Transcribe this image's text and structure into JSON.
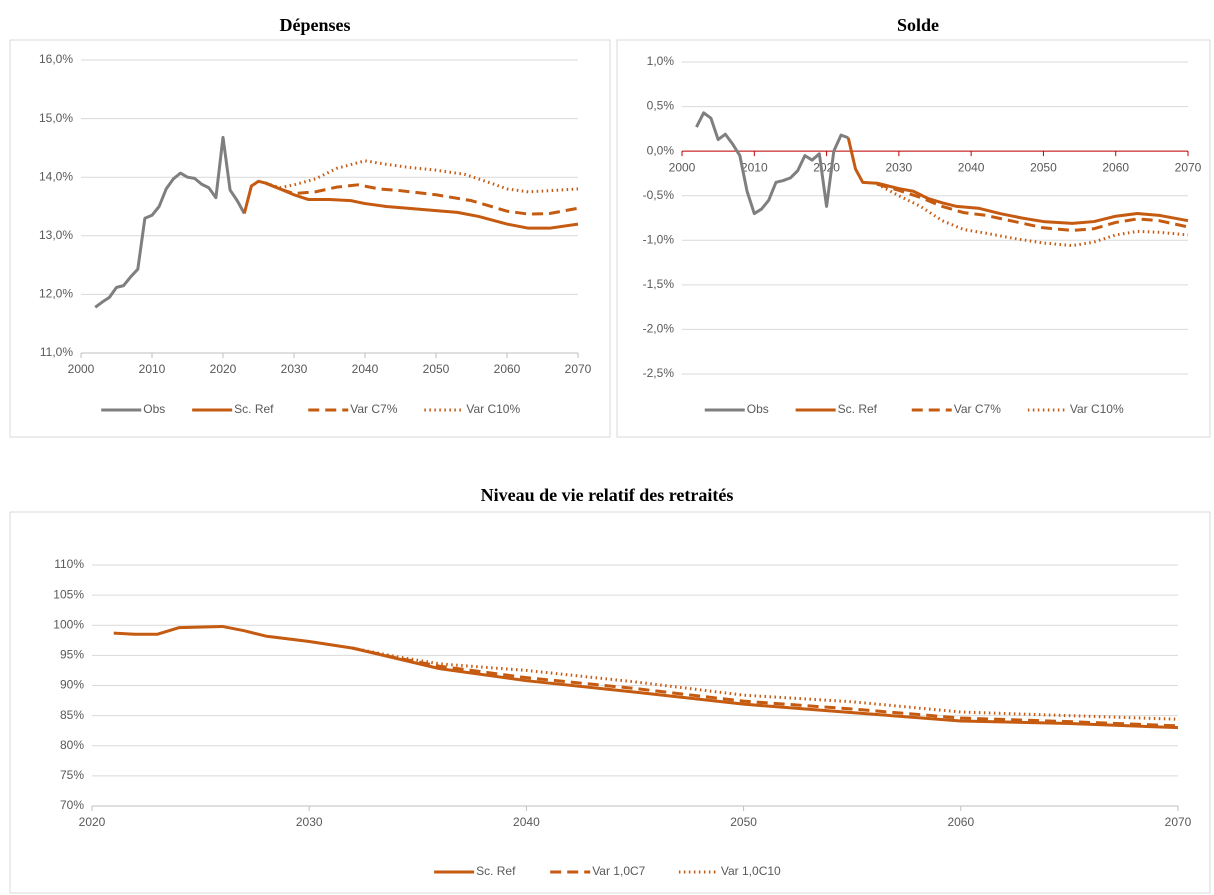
{
  "chart_data": [
    {
      "type": "line",
      "title": "Dépenses",
      "xlim": [
        2000,
        2070
      ],
      "xticks": [
        2000,
        2010,
        2020,
        2030,
        2040,
        2050,
        2060,
        2070
      ],
      "ylim": [
        11,
        16
      ],
      "yticks": [
        {
          "value": 11,
          "label": "11,0%"
        },
        {
          "value": 12,
          "label": "12,0%"
        },
        {
          "value": 13,
          "label": "13,0%"
        },
        {
          "value": 14,
          "label": "14,0%"
        },
        {
          "value": 15,
          "label": "15,0%"
        },
        {
          "value": 16,
          "label": "16,0%"
        }
      ],
      "grid": true,
      "legend": "bottom",
      "axis_color": "#bfbfbf",
      "series": [
        {
          "name": "Obs",
          "color": "#7f7f7f",
          "dash": "solid",
          "x": [
            2002,
            2003,
            2004,
            2005,
            2006,
            2007,
            2008,
            2009,
            2010,
            2011,
            2012,
            2013,
            2014,
            2015,
            2016,
            2017,
            2018,
            2019,
            2020,
            2021,
            2022,
            2023
          ],
          "values": [
            11.78,
            11.87,
            11.95,
            12.12,
            12.15,
            12.3,
            12.43,
            13.3,
            13.35,
            13.5,
            13.8,
            13.97,
            14.07,
            14.0,
            13.98,
            13.88,
            13.82,
            13.65,
            14.68,
            13.78,
            13.6,
            13.38
          ]
        },
        {
          "name": "Sc. Ref",
          "color": "#c55a11",
          "dash": "solid",
          "x": [
            2023,
            2024,
            2025,
            2026,
            2028,
            2030,
            2032,
            2035,
            2038,
            2040,
            2043,
            2046,
            2050,
            2053,
            2056,
            2060,
            2063,
            2066,
            2070
          ],
          "values": [
            13.38,
            13.85,
            13.93,
            13.9,
            13.8,
            13.7,
            13.62,
            13.62,
            13.6,
            13.55,
            13.5,
            13.47,
            13.43,
            13.4,
            13.33,
            13.2,
            13.13,
            13.13,
            13.2
          ]
        },
        {
          "name": "Var C7%",
          "color": "#c55a11",
          "dash": "dashed",
          "x": [
            2026,
            2028,
            2030,
            2033,
            2036,
            2039,
            2042,
            2045,
            2050,
            2055,
            2060,
            2063,
            2066,
            2070
          ],
          "values": [
            13.9,
            13.8,
            13.72,
            13.75,
            13.83,
            13.87,
            13.8,
            13.77,
            13.7,
            13.6,
            13.42,
            13.37,
            13.38,
            13.47
          ]
        },
        {
          "name": "Var C10%",
          "color": "#c55a11",
          "dash": "dotted",
          "x": [
            2026,
            2028,
            2030,
            2033,
            2036,
            2040,
            2043,
            2046,
            2050,
            2054,
            2057,
            2060,
            2063,
            2066,
            2070
          ],
          "values": [
            13.9,
            13.82,
            13.87,
            13.97,
            14.15,
            14.28,
            14.22,
            14.17,
            14.12,
            14.05,
            13.93,
            13.8,
            13.75,
            13.77,
            13.8
          ]
        }
      ]
    },
    {
      "type": "line",
      "title": "Solde",
      "xlim": [
        2000,
        2070
      ],
      "xticks": [
        2000,
        2010,
        2020,
        2030,
        2040,
        2050,
        2060,
        2070
      ],
      "ylim": [
        -2.5,
        1
      ],
      "yticks": [
        {
          "value": -2.5,
          "label": "-2,5%"
        },
        {
          "value": -2,
          "label": "-2,0%"
        },
        {
          "value": -1.5,
          "label": "-1,5%"
        },
        {
          "value": -1,
          "label": "-1,0%"
        },
        {
          "value": -0.5,
          "label": "-0,5%"
        },
        {
          "value": 0,
          "label": "0,0%"
        },
        {
          "value": 0.5,
          "label": "0,5%"
        },
        {
          "value": 1,
          "label": "1,0%"
        }
      ],
      "grid": true,
      "legend": "bottom",
      "xaxis_at": 0,
      "axis_color": "#c00000",
      "series": [
        {
          "name": "Obs",
          "color": "#7f7f7f",
          "dash": "solid",
          "x": [
            2002,
            2003,
            2004,
            2005,
            2006,
            2007,
            2008,
            2009,
            2010,
            2011,
            2012,
            2013,
            2014,
            2015,
            2016,
            2017,
            2018,
            2019,
            2020,
            2021,
            2022,
            2023
          ],
          "values": [
            0.27,
            0.43,
            0.37,
            0.13,
            0.19,
            0.08,
            -0.05,
            -0.45,
            -0.7,
            -0.65,
            -0.55,
            -0.35,
            -0.33,
            -0.3,
            -0.22,
            -0.05,
            -0.1,
            -0.03,
            -0.62,
            0.0,
            0.18,
            0.15
          ]
        },
        {
          "name": "Sc. Ref",
          "color": "#c55a11",
          "dash": "solid",
          "x": [
            2023,
            2024,
            2025,
            2027,
            2028,
            2030,
            2032,
            2034,
            2036,
            2038,
            2041,
            2044,
            2047,
            2050,
            2054,
            2057,
            2060,
            2063,
            2066,
            2070
          ],
          "values": [
            0.15,
            -0.2,
            -0.35,
            -0.36,
            -0.38,
            -0.42,
            -0.45,
            -0.53,
            -0.58,
            -0.62,
            -0.64,
            -0.7,
            -0.75,
            -0.79,
            -0.81,
            -0.79,
            -0.73,
            -0.7,
            -0.72,
            -0.78
          ]
        },
        {
          "name": "Var C7%",
          "color": "#c55a11",
          "dash": "dashed",
          "x": [
            2027,
            2030,
            2033,
            2036,
            2039,
            2042,
            2046,
            2050,
            2054,
            2057,
            2060,
            2063,
            2066,
            2070
          ],
          "values": [
            -0.37,
            -0.44,
            -0.52,
            -0.62,
            -0.69,
            -0.72,
            -0.79,
            -0.86,
            -0.89,
            -0.87,
            -0.8,
            -0.76,
            -0.78,
            -0.85
          ]
        },
        {
          "name": "Var C10%",
          "color": "#c55a11",
          "dash": "dotted",
          "x": [
            2027,
            2030,
            2033,
            2036,
            2039,
            2042,
            2046,
            2050,
            2054,
            2057,
            2060,
            2063,
            2066,
            2070
          ],
          "values": [
            -0.37,
            -0.5,
            -0.62,
            -0.78,
            -0.88,
            -0.92,
            -0.98,
            -1.03,
            -1.06,
            -1.02,
            -0.94,
            -0.9,
            -0.91,
            -0.94
          ]
        }
      ]
    },
    {
      "type": "line",
      "title": "Niveau de vie relatif des retraités",
      "xlim": [
        2020,
        2070
      ],
      "xticks": [
        2020,
        2030,
        2040,
        2050,
        2060,
        2070
      ],
      "ylim": [
        70,
        110
      ],
      "yticks": [
        {
          "value": 70,
          "label": "70%"
        },
        {
          "value": 75,
          "label": "75%"
        },
        {
          "value": 80,
          "label": "80%"
        },
        {
          "value": 85,
          "label": "85%"
        },
        {
          "value": 90,
          "label": "90%"
        },
        {
          "value": 95,
          "label": "95%"
        },
        {
          "value": 100,
          "label": "100%"
        },
        {
          "value": 105,
          "label": "105%"
        },
        {
          "value": 110,
          "label": "110%"
        }
      ],
      "grid": true,
      "legend": "bottom",
      "axis_color": "#bfbfbf",
      "series": [
        {
          "name": "Sc. Ref",
          "color": "#c55a11",
          "dash": "solid",
          "x": [
            2021,
            2022,
            2023,
            2024,
            2026,
            2027,
            2028,
            2030,
            2032,
            2034,
            2036,
            2040,
            2045,
            2050,
            2055,
            2060,
            2065,
            2070
          ],
          "values": [
            98.7,
            98.5,
            98.5,
            99.6,
            99.8,
            99.1,
            98.2,
            97.3,
            96.2,
            94.5,
            92.8,
            90.8,
            88.9,
            86.9,
            85.5,
            84.1,
            83.7,
            83.0
          ]
        },
        {
          "name": "Var 1,0C7",
          "color": "#c55a11",
          "dash": "dashed",
          "x": [
            2032,
            2034,
            2036,
            2040,
            2045,
            2050,
            2055,
            2060,
            2065,
            2070
          ],
          "values": [
            96.2,
            94.6,
            93.2,
            91.3,
            89.5,
            87.4,
            86.1,
            84.6,
            84.0,
            83.3
          ]
        },
        {
          "name": "Var 1,0C10",
          "color": "#c55a11",
          "dash": "dotted",
          "x": [
            2032,
            2034,
            2036,
            2040,
            2045,
            2050,
            2055,
            2060,
            2065,
            2070
          ],
          "values": [
            96.2,
            94.8,
            93.6,
            92.5,
            90.6,
            88.4,
            87.3,
            85.6,
            85.0,
            84.4
          ]
        }
      ]
    }
  ]
}
